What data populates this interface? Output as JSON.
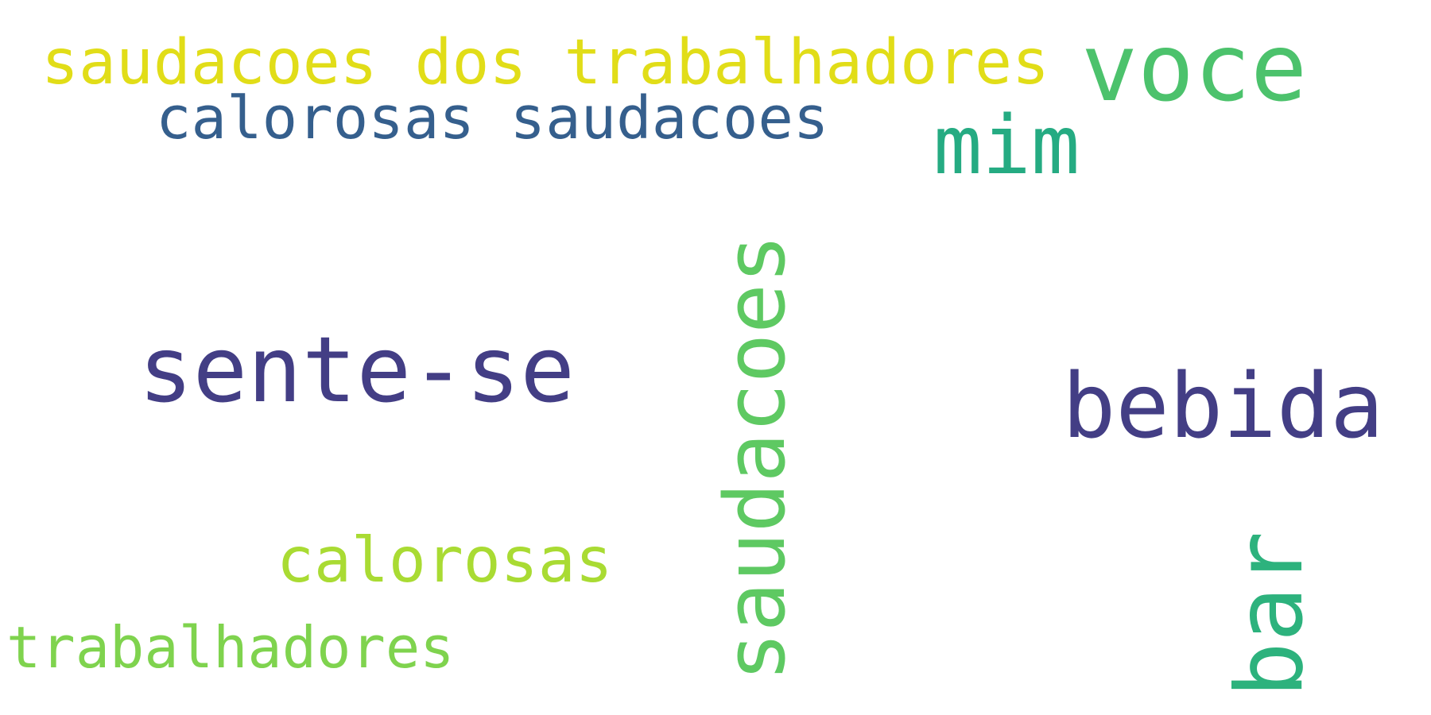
{
  "word_cloud": {
    "words": [
      {
        "id": "saudacoes-dos-trabalhadores",
        "text": "saudacoes dos trabalhadores",
        "color": "#e1dd18"
      },
      {
        "id": "voce",
        "text": "voce",
        "color": "#4cc26c"
      },
      {
        "id": "calorosas-saudacoes",
        "text": "calorosas saudacoes",
        "color": "#355f8d"
      },
      {
        "id": "mim",
        "text": "mim",
        "color": "#25ab82"
      },
      {
        "id": "sente-se",
        "text": "sente-se",
        "color": "#433e85"
      },
      {
        "id": "bebida",
        "text": "bebida",
        "color": "#433e85"
      },
      {
        "id": "calorosas",
        "text": "calorosas",
        "color": "#a9db33"
      },
      {
        "id": "trabalhadores",
        "text": "trabalhadores",
        "color": "#7fd34e"
      },
      {
        "id": "saudacoes",
        "text": "saudacoes",
        "color": "#5ec962",
        "orientation": "vertical"
      },
      {
        "id": "bar",
        "text": "bar",
        "color": "#2db27d",
        "orientation": "vertical"
      }
    ]
  }
}
